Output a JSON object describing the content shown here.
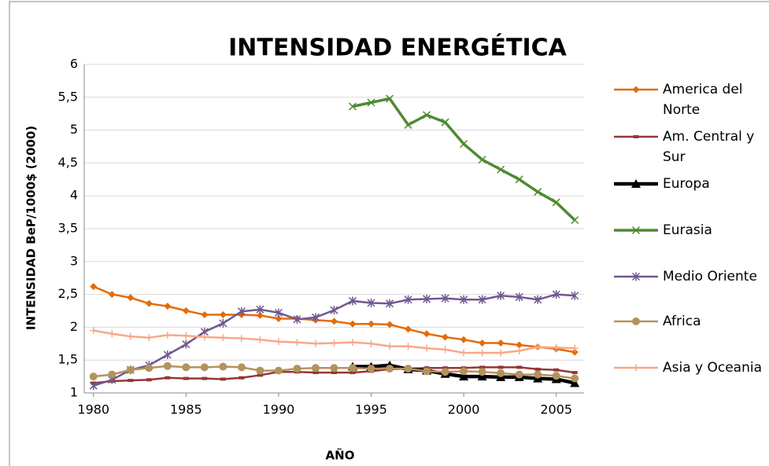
{
  "chart_data": {
    "type": "line",
    "title": "INTENSIDAD ENERGÉTICA",
    "x_label": "AÑO",
    "y_label": "INTENSIDAD BeP/1000$ (2000)",
    "x": [
      1980,
      1981,
      1982,
      1983,
      1984,
      1985,
      1986,
      1987,
      1988,
      1989,
      1990,
      1991,
      1992,
      1993,
      1994,
      1995,
      1996,
      1997,
      1998,
      1999,
      2000,
      2001,
      2002,
      2003,
      2004,
      2005,
      2006
    ],
    "xlim": [
      1979.5,
      2006.5
    ],
    "xticks": [
      1980,
      1985,
      1990,
      1995,
      2000,
      2005
    ],
    "ylim": [
      1,
      6
    ],
    "yticks": [
      1,
      {
        "value": 1.5,
        "label": "1,5"
      },
      2,
      {
        "value": 2.5,
        "label": "2,5"
      },
      3,
      {
        "value": 3.5,
        "label": "3,5"
      },
      4,
      {
        "value": 4.5,
        "label": "4,5"
      },
      5,
      {
        "value": 5.5,
        "label": "5,5"
      },
      6
    ],
    "grid": true,
    "legend": "right",
    "series": [
      {
        "name": "America del Norte",
        "color": "#e36c09",
        "marker": "diamond",
        "values": [
          2.62,
          2.5,
          2.45,
          2.36,
          2.32,
          2.25,
          2.19,
          2.19,
          2.19,
          2.18,
          2.13,
          2.13,
          2.11,
          2.09,
          2.05,
          2.05,
          2.04,
          1.97,
          1.9,
          1.85,
          1.81,
          1.76,
          1.76,
          1.73,
          1.7,
          1.67,
          1.62
        ]
      },
      {
        "name": "Am. Central y Sur",
        "color": "#953735",
        "marker": "square",
        "values": [
          1.15,
          1.18,
          1.19,
          1.2,
          1.23,
          1.22,
          1.22,
          1.21,
          1.23,
          1.27,
          1.32,
          1.32,
          1.31,
          1.31,
          1.31,
          1.33,
          1.36,
          1.37,
          1.38,
          1.38,
          1.38,
          1.39,
          1.39,
          1.39,
          1.36,
          1.35,
          1.31
        ]
      },
      {
        "name": "Europa",
        "color": "#000000",
        "marker": "triangle",
        "values": [
          null,
          null,
          null,
          null,
          null,
          null,
          null,
          null,
          null,
          null,
          null,
          null,
          null,
          null,
          1.4,
          1.4,
          1.42,
          1.36,
          1.34,
          1.29,
          1.25,
          1.25,
          1.24,
          1.24,
          1.22,
          1.21,
          1.15
        ]
      },
      {
        "name": "Eurasia",
        "color": "#4f8a2f",
        "marker": "x",
        "values": [
          null,
          null,
          null,
          null,
          null,
          null,
          null,
          null,
          null,
          null,
          null,
          null,
          null,
          null,
          5.36,
          5.42,
          5.48,
          5.08,
          5.23,
          5.12,
          4.79,
          4.55,
          4.4,
          4.25,
          4.06,
          3.9,
          3.63
        ]
      },
      {
        "name": "Medio Oriente",
        "color": "#71588f",
        "marker": "star",
        "values": [
          1.11,
          1.2,
          1.35,
          1.42,
          1.58,
          1.74,
          1.93,
          2.06,
          2.24,
          2.27,
          2.22,
          2.12,
          2.15,
          2.26,
          2.4,
          2.37,
          2.36,
          2.42,
          2.43,
          2.44,
          2.42,
          2.42,
          2.48,
          2.46,
          2.42,
          2.5,
          2.48
        ]
      },
      {
        "name": "Africa",
        "color": "#b3935d",
        "marker": "circle",
        "values": [
          1.25,
          1.28,
          1.35,
          1.38,
          1.41,
          1.39,
          1.39,
          1.4,
          1.39,
          1.34,
          1.34,
          1.37,
          1.38,
          1.38,
          1.38,
          1.37,
          1.37,
          1.37,
          1.33,
          1.32,
          1.33,
          1.32,
          1.3,
          1.28,
          1.28,
          1.26,
          1.22
        ]
      },
      {
        "name": "Asia y Oceania",
        "color": "#f7a88a",
        "marker": "plus",
        "values": [
          1.95,
          1.9,
          1.86,
          1.84,
          1.88,
          1.87,
          1.85,
          1.84,
          1.83,
          1.81,
          1.78,
          1.77,
          1.75,
          1.76,
          1.77,
          1.75,
          1.71,
          1.71,
          1.68,
          1.66,
          1.61,
          1.61,
          1.61,
          1.64,
          1.7,
          1.69,
          1.68
        ]
      }
    ]
  }
}
